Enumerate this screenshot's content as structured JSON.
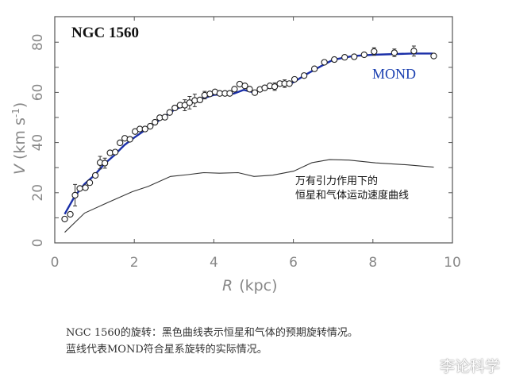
{
  "chart_data": {
    "type": "scatter",
    "title": "NGC 1560",
    "xlabel_symbol": "R",
    "xlabel_unit": "(kpc)",
    "ylabel_symbol": "V",
    "ylabel_unit": "(km s",
    "ylabel_exp": "-1",
    "ylabel_close": ")",
    "xlim": [
      0,
      10
    ],
    "ylim": [
      0,
      85
    ],
    "xticks": [
      0,
      2,
      4,
      6,
      8,
      10
    ],
    "yticks": [
      0,
      20,
      40,
      60,
      80
    ],
    "grid": false,
    "observed": {
      "marker": "open-circle",
      "points": [
        [
          0.25,
          9.5
        ],
        [
          0.39,
          11.4
        ],
        [
          0.51,
          19
        ],
        [
          0.63,
          21.7
        ],
        [
          0.77,
          22
        ],
        [
          0.88,
          24
        ],
        [
          1.02,
          26.9
        ],
        [
          1.14,
          32
        ],
        [
          1.26,
          31.8
        ],
        [
          1.39,
          35.9
        ],
        [
          1.52,
          36.2
        ],
        [
          1.64,
          39.9
        ],
        [
          1.76,
          41.7
        ],
        [
          1.89,
          41.3
        ],
        [
          2.02,
          44.4
        ],
        [
          2.14,
          45.4
        ],
        [
          2.27,
          45.4
        ],
        [
          2.4,
          46.5
        ],
        [
          2.52,
          48.1
        ],
        [
          2.64,
          49.9
        ],
        [
          2.77,
          50.1
        ],
        [
          2.89,
          52
        ],
        [
          3.02,
          53.8
        ],
        [
          3.15,
          54.9
        ],
        [
          3.27,
          54.9
        ],
        [
          3.39,
          55.9
        ],
        [
          3.52,
          56.8
        ],
        [
          3.65,
          57
        ],
        [
          3.77,
          58.9
        ],
        [
          3.9,
          59.4
        ],
        [
          4.03,
          60.2
        ],
        [
          4.15,
          59.6
        ],
        [
          4.28,
          59.6
        ],
        [
          4.4,
          59.6
        ],
        [
          4.52,
          61.3
        ],
        [
          4.65,
          63.3
        ],
        [
          4.78,
          62.6
        ],
        [
          4.9,
          61.3
        ],
        [
          5.03,
          59.9
        ],
        [
          5.16,
          61.2
        ],
        [
          5.28,
          61.8
        ],
        [
          5.41,
          62.6
        ],
        [
          5.53,
          62.3
        ],
        [
          5.66,
          63.5
        ],
        [
          5.78,
          63.5
        ],
        [
          5.9,
          63.5
        ],
        [
          6.03,
          65.2
        ],
        [
          6.27,
          66.7
        ],
        [
          6.53,
          69.4
        ],
        [
          6.78,
          72
        ],
        [
          7.03,
          73.1
        ],
        [
          7.29,
          74
        ],
        [
          7.53,
          74.2
        ],
        [
          7.78,
          75
        ],
        [
          8.03,
          76.3
        ],
        [
          8.54,
          75.8
        ],
        [
          9.03,
          76.5
        ],
        [
          9.53,
          74.5
        ]
      ],
      "errors": [
        [
          0.51,
          4.3
        ],
        [
          1.14,
          2.5
        ],
        [
          1.26,
          2
        ],
        [
          3.27,
          2.2
        ],
        [
          3.39,
          2.5
        ],
        [
          3.52,
          2.5
        ],
        [
          3.77,
          1.5
        ],
        [
          5.53,
          1.5
        ],
        [
          5.78,
          1.5
        ],
        [
          8.03,
          1.5
        ],
        [
          8.54,
          1.5
        ],
        [
          9.03,
          2
        ]
      ]
    },
    "series": [
      {
        "name": "MOND",
        "color": "#1a2fa8",
        "x": [
          0.25,
          0.5,
          0.75,
          1,
          1.25,
          1.5,
          1.75,
          2,
          2.5,
          3,
          3.5,
          4,
          4.5,
          4.75,
          5,
          5.5,
          6,
          6.3,
          6.7,
          7,
          7.5,
          8,
          9,
          9.5
        ],
        "y": [
          11.5,
          18.5,
          23.5,
          27,
          31.5,
          35,
          39,
          42,
          47.5,
          53,
          56.5,
          59,
          59.5,
          61,
          60,
          62.5,
          64,
          67,
          70.5,
          73,
          74.5,
          75,
          75.5,
          75.5
        ]
      },
      {
        "name": "万有引力作用下的恒星和气体运动速度曲线",
        "color": "#333333",
        "x": [
          0.25,
          0.75,
          1.42,
          1.95,
          2.35,
          2.91,
          3.35,
          3.75,
          4.14,
          4.61,
          5.01,
          5.48,
          6.01,
          6.47,
          6.91,
          7.4,
          8.07,
          8.87,
          9.53
        ],
        "y": [
          4.2,
          11.9,
          16.7,
          20.4,
          22.5,
          26.5,
          27.2,
          28,
          27.8,
          28,
          26.5,
          27,
          28.6,
          32,
          33.2,
          33,
          31.9,
          31.1,
          30.2
        ]
      }
    ],
    "annotations": {
      "mond_label": "MOND",
      "newton_line1": "万有引力作用下的",
      "newton_line2": "恒星和气体运动速度曲线"
    }
  },
  "caption": {
    "line1": "NGC 1560的旋转：黑色曲线表示恒星和气体的预期旋转情况。",
    "line2": "蓝线代表MOND符合星系旋转的实际情况。"
  },
  "watermark": "李论科学"
}
